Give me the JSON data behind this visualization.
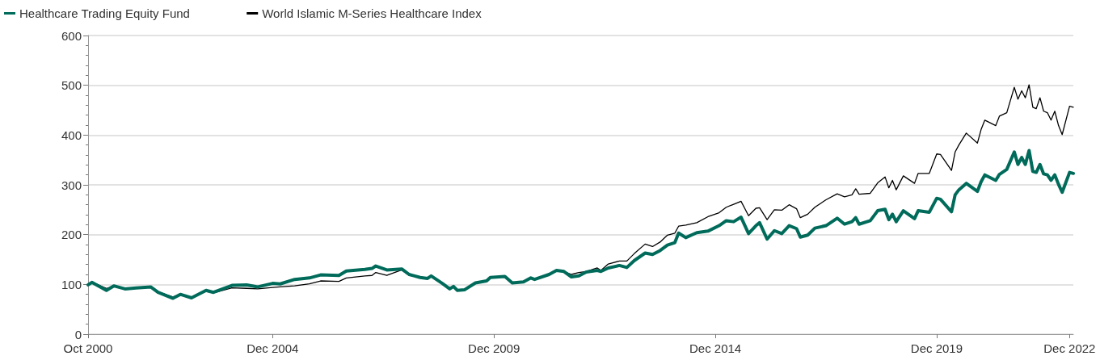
{
  "chart_data": {
    "type": "line",
    "x": [
      "2000-10",
      "2000-11",
      "2001-03",
      "2001-05",
      "2001-08",
      "2001-11",
      "2002-03",
      "2002-05",
      "2002-09",
      "2002-11",
      "2003-02",
      "2003-06",
      "2003-08",
      "2004-01",
      "2004-05",
      "2004-08",
      "2004-12",
      "2005-02",
      "2005-06",
      "2005-10",
      "2006-01",
      "2006-06",
      "2006-08",
      "2007-01",
      "2007-03",
      "2007-04",
      "2007-07",
      "2007-11",
      "2008-01",
      "2008-04",
      "2008-06",
      "2008-07",
      "2008-10",
      "2008-12",
      "2009-01",
      "2009-02",
      "2009-04",
      "2009-07",
      "2009-10",
      "2009-11",
      "2010-03",
      "2010-05",
      "2010-08",
      "2010-10",
      "2010-11",
      "2011-03",
      "2011-05",
      "2011-07",
      "2011-09",
      "2011-11",
      "2012-01",
      "2012-04",
      "2012-05",
      "2012-07",
      "2012-10",
      "2012-12",
      "2013-02",
      "2013-05",
      "2013-07",
      "2013-09",
      "2013-11",
      "2014-01",
      "2014-02",
      "2014-04",
      "2014-07",
      "2014-10",
      "2015-01",
      "2015-03",
      "2015-05",
      "2015-07",
      "2015-09",
      "2015-11",
      "2015-12",
      "2016-02",
      "2016-04",
      "2016-06",
      "2016-08",
      "2016-10",
      "2016-11",
      "2017-01",
      "2017-03",
      "2017-06",
      "2017-09",
      "2017-11",
      "2018-01",
      "2018-02",
      "2018-03",
      "2018-06",
      "2018-08",
      "2018-10",
      "2018-11",
      "2018-12",
      "2019-01",
      "2019-03",
      "2019-06",
      "2019-07",
      "2019-10",
      "2019-12",
      "2020-01",
      "2020-04",
      "2020-05",
      "2020-06",
      "2020-08",
      "2020-11",
      "2020-12",
      "2021-01",
      "2021-04",
      "2021-05",
      "2021-07",
      "2021-09",
      "2021-10",
      "2021-11",
      "2021-12",
      "2022-01",
      "2022-02",
      "2022-03",
      "2022-04",
      "2022-05",
      "2022-06",
      "2022-07",
      "2022-08",
      "2022-09",
      "2022-10",
      "2022-12",
      "2023-01"
    ],
    "series": [
      {
        "name": "Healthcare Trading Equity Fund",
        "color": "#006b5a",
        "values": [
          99,
          104,
          88,
          97,
          91,
          93,
          95,
          84,
          72,
          80,
          73,
          88,
          84,
          98,
          99,
          95,
          102,
          101,
          110,
          113,
          119,
          118,
          127,
          130,
          132,
          137,
          129,
          131,
          120,
          114,
          112,
          117,
          102,
          91,
          96,
          88,
          89,
          103,
          107,
          114,
          116,
          103,
          105,
          113,
          110,
          120,
          128,
          126,
          115,
          117,
          125,
          128,
          126,
          133,
          138,
          134,
          148,
          163,
          160,
          168,
          179,
          184,
          203,
          194,
          204,
          207,
          218,
          228,
          226,
          235,
          202,
          218,
          224,
          191,
          208,
          202,
          218,
          212,
          195,
          199,
          213,
          218,
          233,
          221,
          226,
          234,
          221,
          228,
          248,
          251,
          230,
          241,
          226,
          248,
          232,
          248,
          245,
          273,
          271,
          246,
          280,
          290,
          303,
          287,
          306,
          320,
          309,
          321,
          331,
          366,
          341,
          355,
          341,
          369,
          327,
          325,
          341,
          322,
          320,
          309,
          320,
          301,
          285,
          325,
          323
        ]
      },
      {
        "name": "World Islamic M-Series Healthcare Index",
        "color": "#000000",
        "values": [
          100,
          105,
          92,
          96,
          92,
          93,
          94,
          85,
          75,
          80,
          73,
          86,
          83,
          93,
          92,
          91,
          94,
          95,
          97,
          101,
          107,
          106,
          113,
          117,
          118,
          124,
          118,
          129,
          118,
          114,
          112,
          117,
          102,
          91,
          96,
          88,
          89,
          103,
          107,
          114,
          116,
          103,
          105,
          113,
          110,
          120,
          128,
          126,
          120,
          124,
          126,
          133,
          128,
          141,
          147,
          147,
          162,
          181,
          176,
          185,
          199,
          203,
          217,
          219,
          224,
          236,
          244,
          255,
          261,
          267,
          238,
          253,
          254,
          230,
          250,
          249,
          260,
          252,
          234,
          241,
          255,
          270,
          282,
          276,
          280,
          292,
          281,
          283,
          304,
          316,
          294,
          309,
          290,
          318,
          303,
          323,
          323,
          362,
          361,
          329,
          366,
          380,
          404,
          384,
          411,
          430,
          419,
          438,
          445,
          496,
          472,
          489,
          475,
          501,
          456,
          453,
          475,
          448,
          445,
          430,
          448,
          419,
          401,
          458,
          456
        ]
      }
    ],
    "xlim": [
      "2000-10",
      "2023-01"
    ],
    "xticks": [
      {
        "value": "2000-10",
        "label": "Oct 2000"
      },
      {
        "value": "2004-12",
        "label": "Dec 2004"
      },
      {
        "value": "2009-12",
        "label": "Dec 2009"
      },
      {
        "value": "2014-12",
        "label": "Dec 2014"
      },
      {
        "value": "2019-12",
        "label": "Dec 2019"
      },
      {
        "value": "2022-12",
        "label": "Dec 2022"
      }
    ],
    "ylim": [
      0,
      600
    ],
    "yticks": [
      0,
      {
        "value": 20,
        "label": null
      },
      {
        "value": 40,
        "label": null
      },
      {
        "value": 60,
        "label": null
      },
      {
        "value": 80,
        "label": null
      },
      100,
      {
        "value": 120,
        "label": null
      },
      {
        "value": 140,
        "label": null
      },
      {
        "value": 160,
        "label": null
      },
      {
        "value": 180,
        "label": null
      },
      200,
      {
        "value": 220,
        "label": null
      },
      {
        "value": 240,
        "label": null
      },
      {
        "value": 260,
        "label": null
      },
      {
        "value": 280,
        "label": null
      },
      300,
      {
        "value": 320,
        "label": null
      },
      {
        "value": 340,
        "label": null
      },
      {
        "value": 360,
        "label": null
      },
      {
        "value": 380,
        "label": null
      },
      400,
      {
        "value": 420,
        "label": null
      },
      {
        "value": 440,
        "label": null
      },
      {
        "value": 460,
        "label": null
      },
      {
        "value": 480,
        "label": null
      },
      500,
      {
        "value": 520,
        "label": null
      },
      {
        "value": 540,
        "label": null
      },
      {
        "value": 560,
        "label": null
      },
      {
        "value": 580,
        "label": null
      },
      600
    ],
    "grid": "y",
    "legend": "top left",
    "marker": "none",
    "line_style": "solid"
  }
}
